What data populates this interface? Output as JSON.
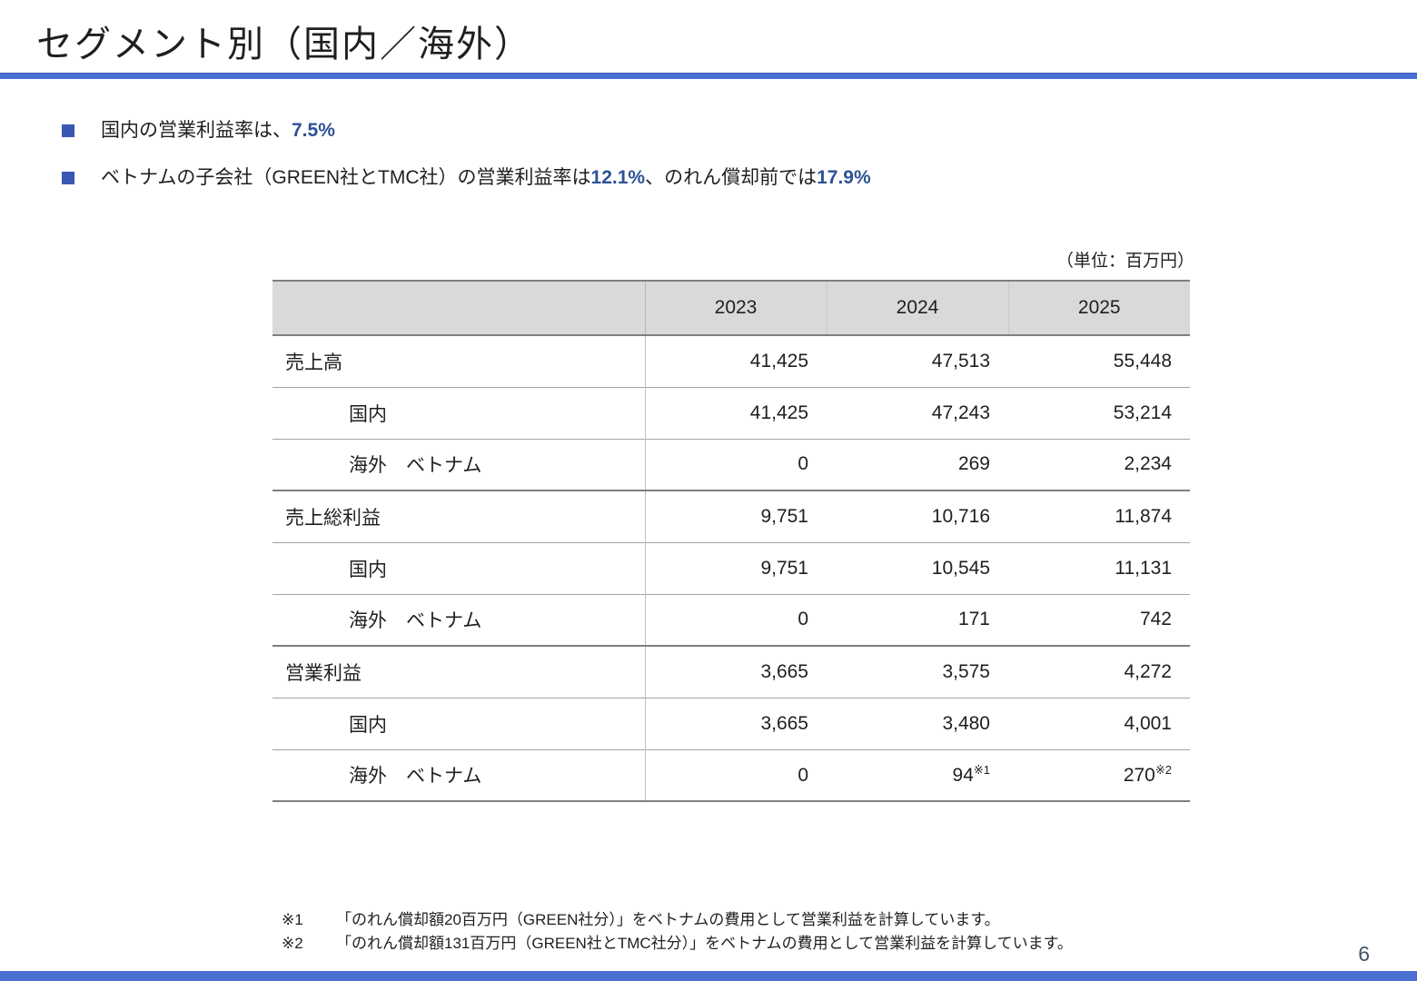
{
  "slide": {
    "title": "セグメント別（国内／海外）",
    "page_number": "6"
  },
  "bullets": [
    {
      "prefix": "国内の営業利益率は、",
      "em1": "7.5%",
      "mid": "",
      "em2": ""
    },
    {
      "prefix": "ベトナムの子会社（GREEN社とTMC社）の営業利益率は",
      "em1": "12.1%",
      "mid": "、のれん償却前では",
      "em2": "17.9%"
    }
  ],
  "table": {
    "unit_label": "（単位：百万円）",
    "columns": [
      "2023",
      "2024",
      "2025"
    ],
    "rows": [
      {
        "label": "売上高",
        "indent": false,
        "values": [
          "41,425",
          "47,513",
          "55,448"
        ],
        "sups": [
          "",
          "",
          ""
        ]
      },
      {
        "label": "国内",
        "indent": true,
        "values": [
          "41,425",
          "47,243",
          "53,214"
        ],
        "sups": [
          "",
          "",
          ""
        ]
      },
      {
        "label": "海外　ベトナム",
        "indent": true,
        "values": [
          "0",
          "269",
          "2,234"
        ],
        "sups": [
          "",
          "",
          ""
        ]
      },
      {
        "label": "売上総利益",
        "indent": false,
        "values": [
          "9,751",
          "10,716",
          "11,874"
        ],
        "sups": [
          "",
          "",
          ""
        ]
      },
      {
        "label": "国内",
        "indent": true,
        "values": [
          "9,751",
          "10,545",
          "11,131"
        ],
        "sups": [
          "",
          "",
          ""
        ]
      },
      {
        "label": "海外　ベトナム",
        "indent": true,
        "values": [
          "0",
          "171",
          "742"
        ],
        "sups": [
          "",
          "",
          ""
        ]
      },
      {
        "label": "営業利益",
        "indent": false,
        "values": [
          "3,665",
          "3,575",
          "4,272"
        ],
        "sups": [
          "",
          "",
          ""
        ]
      },
      {
        "label": "国内",
        "indent": true,
        "values": [
          "3,665",
          "3,480",
          "4,001"
        ],
        "sups": [
          "",
          "",
          ""
        ]
      },
      {
        "label": "海外　ベトナム",
        "indent": true,
        "values": [
          "0",
          "94",
          "270"
        ],
        "sups": [
          "",
          "※1",
          "※2"
        ]
      }
    ]
  },
  "footnotes": [
    {
      "marker": "※1",
      "text": "「のれん償却額20百万円（GREEN社分）」をベトナムの費用として営業利益を計算しています。"
    },
    {
      "marker": "※2",
      "text": "「のれん償却額131百万円（GREEN社とTMC社分）」をベトナムの費用として営業利益を計算しています。"
    }
  ],
  "colors": {
    "accent_bar": "#4a70d2",
    "bullet_square": "#3a57b5",
    "emphasis_text": "#2e5296",
    "header_gray": "#d9d9d9",
    "page_number": "#44546a"
  }
}
